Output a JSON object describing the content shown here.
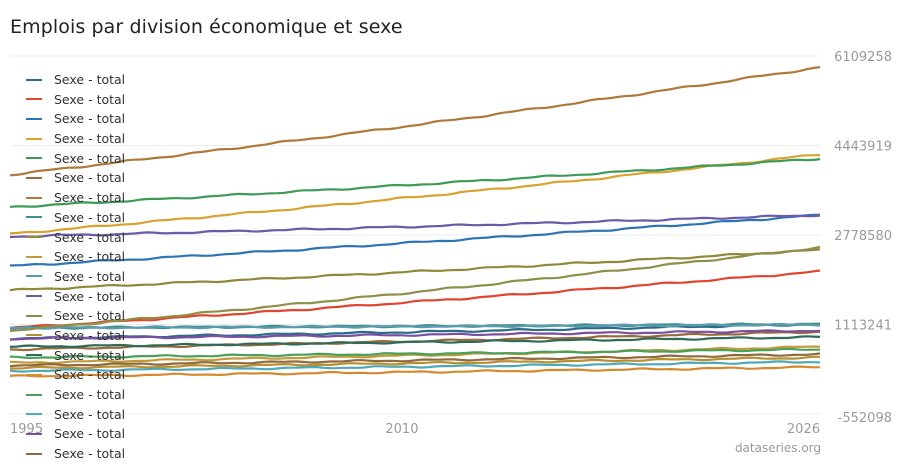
{
  "chart_data": {
    "type": "line",
    "title": "Emplois par division économique et sexe",
    "xlabel": "",
    "ylabel": "",
    "x_range": [
      1995,
      2026
    ],
    "xlim": [
      1995,
      2026
    ],
    "ylim": [
      -552098,
      6109258
    ],
    "y_ticks": [
      "6109258",
      "4443919",
      "2778580",
      "1113241",
      "-552098"
    ],
    "x_ticks": [
      "1995",
      "2010",
      "2026"
    ],
    "grid": true,
    "legend_position": "top-left",
    "series": [
      {
        "name": "Sexe - total",
        "color": "#2a6b8a",
        "start": 850000,
        "end": 1120000
      },
      {
        "name": "Sexe - total",
        "color": "#e0452f",
        "start": 1050000,
        "end": 2100000
      },
      {
        "name": "Sexe - total",
        "color": "#2d74b4",
        "start": 2200000,
        "end": 3150000
      },
      {
        "name": "Sexe - total",
        "color": "#d9a22e",
        "start": 2800000,
        "end": 4280000
      },
      {
        "name": "Sexe - total",
        "color": "#3e9a57",
        "start": 3300000,
        "end": 4200000
      },
      {
        "name": "Sexe - total",
        "color": "#9a6a3e",
        "start": 650000,
        "end": 980000
      },
      {
        "name": "Sexe - total",
        "color": "#ad7a3a",
        "start": 3900000,
        "end": 5900000
      },
      {
        "name": "Sexe - total",
        "color": "#3f8f8a",
        "start": 1050000,
        "end": 1120000
      },
      {
        "name": "Sexe - total",
        "color": "#8e8a3a",
        "start": 1750000,
        "end": 2500000
      },
      {
        "name": "Sexe - total",
        "color": "#c29a3a",
        "start": 400000,
        "end": 700000
      },
      {
        "name": "Sexe - total",
        "color": "#5a9bb0",
        "start": 1050000,
        "end": 1110000
      },
      {
        "name": "Sexe - total",
        "color": "#6a5aa8",
        "start": 2750000,
        "end": 3150000
      },
      {
        "name": "Sexe - total",
        "color": "#8f8f4a",
        "start": 1000000,
        "end": 2550000
      },
      {
        "name": "Sexe - total",
        "color": "#b8902f",
        "start": 300000,
        "end": 500000
      },
      {
        "name": "Sexe - total",
        "color": "#2f6b57",
        "start": 700000,
        "end": 880000
      },
      {
        "name": "Sexe - total",
        "color": "#d5892c",
        "start": 150000,
        "end": 320000
      },
      {
        "name": "Sexe - total",
        "color": "#4aa05a",
        "start": 500000,
        "end": 650000
      },
      {
        "name": "Sexe - total",
        "color": "#4fa8b8",
        "start": 250000,
        "end": 420000
      },
      {
        "name": "Sexe - total",
        "color": "#7a4fa0",
        "start": 850000,
        "end": 1000000
      },
      {
        "name": "Sexe - total",
        "color": "#8f6a3e",
        "start": 350000,
        "end": 560000
      }
    ]
  },
  "credit": "dataseries.org"
}
